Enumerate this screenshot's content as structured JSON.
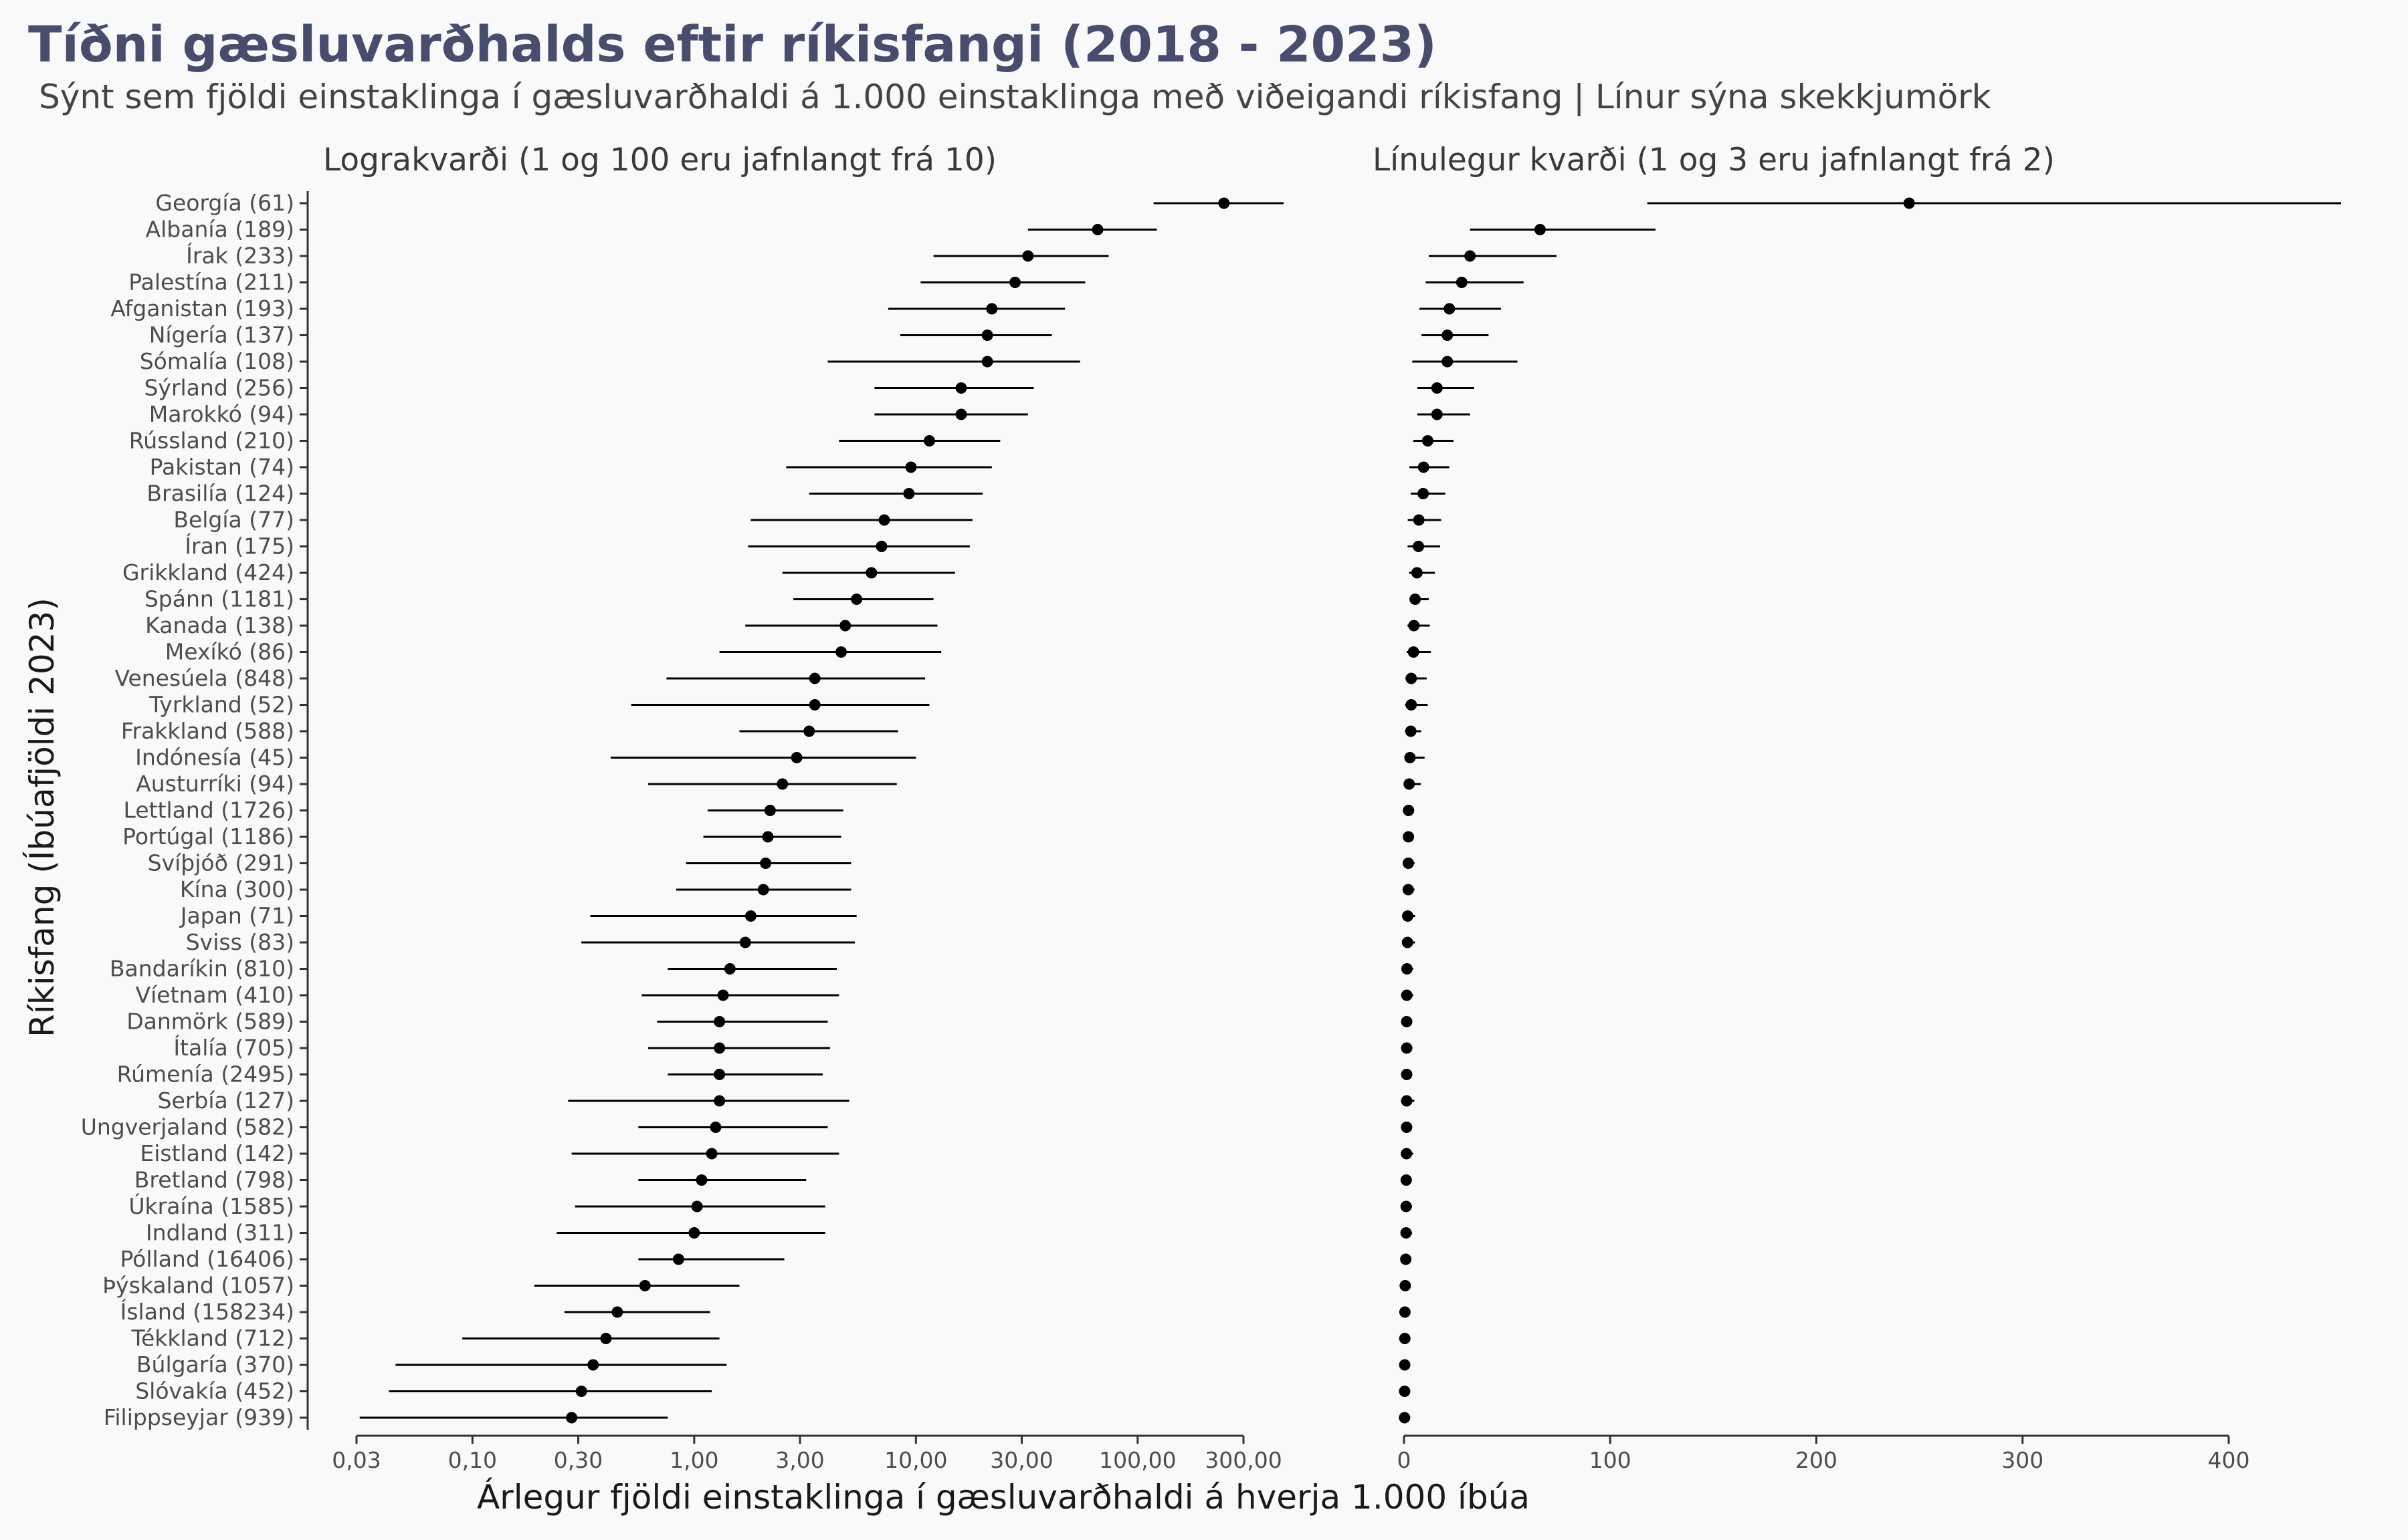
{
  "title": "Tíðni gæsluvarðhalds eftir ríkisfangi (2018 - 2023)",
  "subtitle": "Sýnt sem fjöldi einstaklinga í gæsluvarðhaldi á 1.000 einstaklinga með viðeigandi ríkisfang | Línur sýna skekkjumörk",
  "colors": {
    "title": "#484d6d",
    "background": "#f9f9f9",
    "point": "#000000"
  },
  "chart_data": {
    "type": "scatter",
    "error_bars": true,
    "grid": false,
    "xlabel": "Árlegur fjöldi einstaklinga í gæsluvarðhaldi á hverja 1.000 íbúa",
    "ylabel": "Ríkisfang (Íbúafjöldi 2023)",
    "categories": [
      "Georgía (61)",
      "Albanía (189)",
      "Írak (233)",
      "Palestína (211)",
      "Afganistan (193)",
      "Nígería (137)",
      "Sómalía (108)",
      "Sýrland (256)",
      "Marokkó (94)",
      "Rússland (210)",
      "Pakistan (74)",
      "Brasilía (124)",
      "Belgía (77)",
      "Íran (175)",
      "Grikkland (424)",
      "Spánn (1181)",
      "Kanada (138)",
      "Mexíkó (86)",
      "Venesúela (848)",
      "Tyrkland (52)",
      "Frakkland (588)",
      "Indónesía (45)",
      "Austurríki (94)",
      "Lettland (1726)",
      "Portúgal (1186)",
      "Svíþjóð (291)",
      "Kína (300)",
      "Japan (71)",
      "Sviss (83)",
      "Bandaríkin (810)",
      "Víetnam (410)",
      "Danmörk (589)",
      "Ítalía (705)",
      "Rúmenía (2495)",
      "Serbía (127)",
      "Ungverjaland (582)",
      "Eistland (142)",
      "Bretland (798)",
      "Úkraína (1585)",
      "Indland (311)",
      "Pólland (16406)",
      "Þýskaland (1057)",
      "Ísland (158234)",
      "Tékkland (712)",
      "Búlgaría (370)",
      "Slóvakía (452)",
      "Filippseyjar (939)"
    ],
    "estimates": [
      245,
      66,
      32,
      28,
      22,
      21,
      21,
      16,
      16,
      11.5,
      9.5,
      9.3,
      7.2,
      7.0,
      6.3,
      5.4,
      4.8,
      4.6,
      3.5,
      3.5,
      3.3,
      2.9,
      2.5,
      2.2,
      2.15,
      2.1,
      2.05,
      1.8,
      1.7,
      1.45,
      1.35,
      1.3,
      1.3,
      1.3,
      1.3,
      1.25,
      1.2,
      1.08,
      1.03,
      1.0,
      0.85,
      0.6,
      0.45,
      0.4,
      0.35,
      0.31,
      0.28
    ],
    "lower": [
      118,
      32,
      12,
      10.5,
      7.5,
      8.5,
      4,
      6.5,
      6.5,
      4.5,
      2.6,
      3.3,
      1.8,
      1.75,
      2.5,
      2.8,
      1.7,
      1.3,
      0.75,
      0.52,
      1.6,
      0.42,
      0.62,
      1.15,
      1.1,
      0.92,
      0.83,
      0.34,
      0.31,
      0.76,
      0.58,
      0.68,
      0.62,
      0.76,
      0.27,
      0.56,
      0.28,
      0.56,
      0.29,
      0.24,
      0.56,
      0.19,
      0.26,
      0.09,
      0.045,
      0.042,
      0.031
    ],
    "upper": [
      460,
      122,
      74,
      58,
      47,
      41,
      55,
      34,
      32,
      24,
      22,
      20,
      18,
      17.5,
      15,
      12,
      12.5,
      13,
      11,
      11.5,
      8.3,
      10,
      8.2,
      4.7,
      4.6,
      5.1,
      5.1,
      5.4,
      5.3,
      4.4,
      4.5,
      4.0,
      4.1,
      3.8,
      5.0,
      4.0,
      4.5,
      3.2,
      3.9,
      3.9,
      2.55,
      1.6,
      1.18,
      1.3,
      1.4,
      1.2,
      0.76
    ],
    "panels": [
      {
        "label": "Lograkvarði (1 og 100 eru jafnlangt frá 10)",
        "scale": "log",
        "xlim": [
          0.03,
          300
        ],
        "ticks": [
          0.03,
          0.1,
          0.3,
          1,
          3,
          10,
          30,
          100,
          300
        ],
        "tick_labels": [
          "0,03",
          "0,10",
          "0,30",
          "1,00",
          "3,00",
          "10,00",
          "30,00",
          "100,00",
          "300,00"
        ]
      },
      {
        "label": "Línulegur kvarði (1 og 3 eru jafnlangt frá 2)",
        "scale": "linear",
        "xlim": [
          0,
          400
        ],
        "ticks": [
          0,
          100,
          200,
          300,
          400
        ],
        "tick_labels": [
          "0",
          "100",
          "200",
          "300",
          "400"
        ]
      }
    ]
  }
}
